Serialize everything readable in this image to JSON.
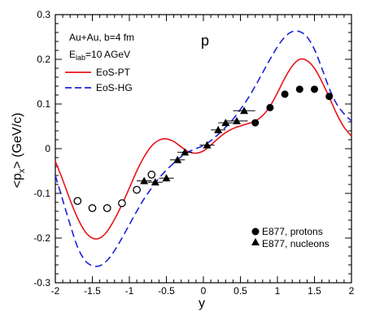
{
  "chart_data": {
    "type": "line",
    "title": "",
    "xlabel": "y",
    "ylabel_main": "<p",
    "ylabel_sub": "x",
    "ylabel_rest": "> (GeV/c)",
    "xlim": [
      -2,
      2
    ],
    "ylim": [
      -0.3,
      0.3
    ],
    "x_ticks": [
      -2,
      -1.5,
      -1,
      -0.5,
      0,
      0.5,
      1,
      1.5,
      2
    ],
    "x_tick_labels": [
      "-2",
      "-1.5",
      "-1",
      "-0.5",
      "0",
      "0.5",
      "1",
      "1.5",
      "2"
    ],
    "y_ticks": [
      -0.3,
      -0.2,
      -0.1,
      0,
      0.1,
      0.2,
      0.3
    ],
    "y_tick_labels": [
      "-0.3",
      "-0.2",
      "-0.1",
      "0",
      "0.1",
      "0.2",
      "0.3"
    ],
    "annotations": {
      "system": "Au+Au, b=4 fm",
      "energy_main": "E",
      "energy_sub": "lab",
      "energy_rest": "=10 AGeV",
      "particle": "p"
    },
    "series": [
      {
        "name": "EoS-PT",
        "style": "solid",
        "color": "#e8141b",
        "x": [
          -2,
          -1.9,
          -1.8,
          -1.7,
          -1.6,
          -1.5,
          -1.4,
          -1.3,
          -1.2,
          -1.1,
          -1.0,
          -0.9,
          -0.8,
          -0.7,
          -0.6,
          -0.5,
          -0.4,
          -0.3,
          -0.2,
          -0.1,
          0.0,
          0.1,
          0.2,
          0.3,
          0.4,
          0.5,
          0.6,
          0.7,
          0.8,
          0.9,
          1.0,
          1.1,
          1.2,
          1.3,
          1.4,
          1.5,
          1.6,
          1.7,
          1.8,
          1.9,
          2.0
        ],
        "values": [
          -0.028,
          -0.07,
          -0.115,
          -0.155,
          -0.185,
          -0.2,
          -0.2,
          -0.185,
          -0.158,
          -0.125,
          -0.088,
          -0.05,
          -0.018,
          0.006,
          0.019,
          0.022,
          0.016,
          0.004,
          -0.007,
          -0.01,
          -0.005,
          0.008,
          0.023,
          0.036,
          0.045,
          0.051,
          0.056,
          0.062,
          0.074,
          0.095,
          0.125,
          0.158,
          0.185,
          0.2,
          0.197,
          0.18,
          0.15,
          0.115,
          0.078,
          0.048,
          0.028
        ]
      },
      {
        "name": "EoS-HG",
        "style": "dashed",
        "color": "#1c21d9",
        "x": [
          -2,
          -1.9,
          -1.8,
          -1.7,
          -1.6,
          -1.5,
          -1.4,
          -1.3,
          -1.2,
          -1.1,
          -1.0,
          -0.9,
          -0.8,
          -0.7,
          -0.6,
          -0.5,
          -0.4,
          -0.3,
          -0.2,
          -0.1,
          0.0,
          0.1,
          0.2,
          0.3,
          0.4,
          0.5,
          0.6,
          0.7,
          0.8,
          0.9,
          1.0,
          1.1,
          1.2,
          1.3,
          1.4,
          1.5,
          1.6,
          1.7,
          1.8,
          1.9,
          2.0
        ],
        "values": [
          -0.06,
          -0.115,
          -0.17,
          -0.22,
          -0.25,
          -0.262,
          -0.262,
          -0.25,
          -0.228,
          -0.2,
          -0.17,
          -0.14,
          -0.112,
          -0.088,
          -0.066,
          -0.048,
          -0.032,
          -0.018,
          -0.007,
          0.0,
          0.007,
          0.018,
          0.032,
          0.048,
          0.066,
          0.088,
          0.112,
          0.14,
          0.17,
          0.2,
          0.228,
          0.25,
          0.262,
          0.262,
          0.25,
          0.222,
          0.18,
          0.135,
          0.1,
          0.078,
          0.062
        ]
      }
    ],
    "points": [
      {
        "name": "E877, protons",
        "marker": "circle-filled",
        "x": [
          0.7,
          0.9,
          1.1,
          1.3,
          1.5,
          1.7
        ],
        "y": [
          0.058,
          0.092,
          0.122,
          0.133,
          0.133,
          0.117
        ]
      },
      {
        "name": "E877, nucleons",
        "marker": "triangle-filled",
        "x": [
          -0.8,
          -0.65,
          -0.5,
          -0.35,
          -0.25,
          0.05,
          0.2,
          0.3,
          0.45,
          0.55
        ],
        "y": [
          -0.072,
          -0.075,
          -0.066,
          -0.025,
          -0.008,
          0.008,
          0.042,
          0.058,
          0.062,
          0.085
        ],
        "xerr": [
          0.1,
          0.1,
          0.1,
          0.1,
          0.1,
          0.1,
          0.1,
          0.1,
          0.15,
          0.15
        ]
      },
      {
        "name": "",
        "marker": "circle-open",
        "x": [
          -1.7,
          -1.5,
          -1.3,
          -1.1,
          -0.9,
          -0.7
        ],
        "y": [
          -0.117,
          -0.133,
          -0.133,
          -0.122,
          -0.092,
          -0.058
        ]
      }
    ],
    "legend": {
      "lines_position": "top-left",
      "markers_position": "bottom-right"
    }
  }
}
